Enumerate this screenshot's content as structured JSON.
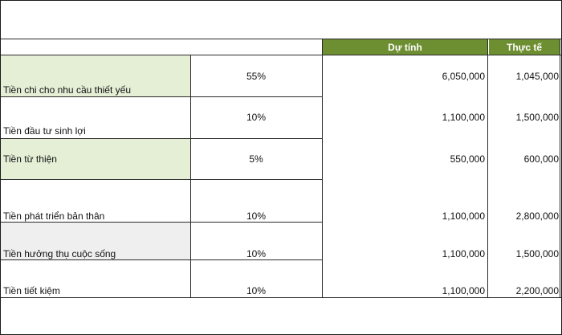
{
  "table": {
    "header": {
      "estimated": "Dự tính",
      "actual": "Thực tế"
    },
    "rows": [
      {
        "label": "Tiền chi cho nhu cầu thiết yếu",
        "percent": "55%",
        "estimated": "6,050,000",
        "actual": "1,045,000"
      },
      {
        "label": "Tiền đầu tư sinh lợi",
        "percent": "10%",
        "estimated": "1,100,000",
        "actual": "1,500,000"
      },
      {
        "label": "Tiền từ thiện",
        "percent": "5%",
        "estimated": "550,000",
        "actual": "600,000"
      },
      {
        "label": "Tiền phát triển bản thân",
        "percent": "10%",
        "estimated": "1,100,000",
        "actual": "2,800,000"
      },
      {
        "label": "Tiền  hưởng thụ cuộc sống",
        "percent": "10%",
        "estimated": "1,100,000",
        "actual": "1,500,000"
      },
      {
        "label": "Tiền tiết kiệm",
        "percent": "10%",
        "estimated": "1,100,000",
        "actual": "2,200,000"
      }
    ],
    "colors": {
      "header_fill": "#6e8e32",
      "header_text": "#ffffff",
      "highlight_green": "#e4efd6",
      "highlight_grey": "#efefef"
    }
  }
}
